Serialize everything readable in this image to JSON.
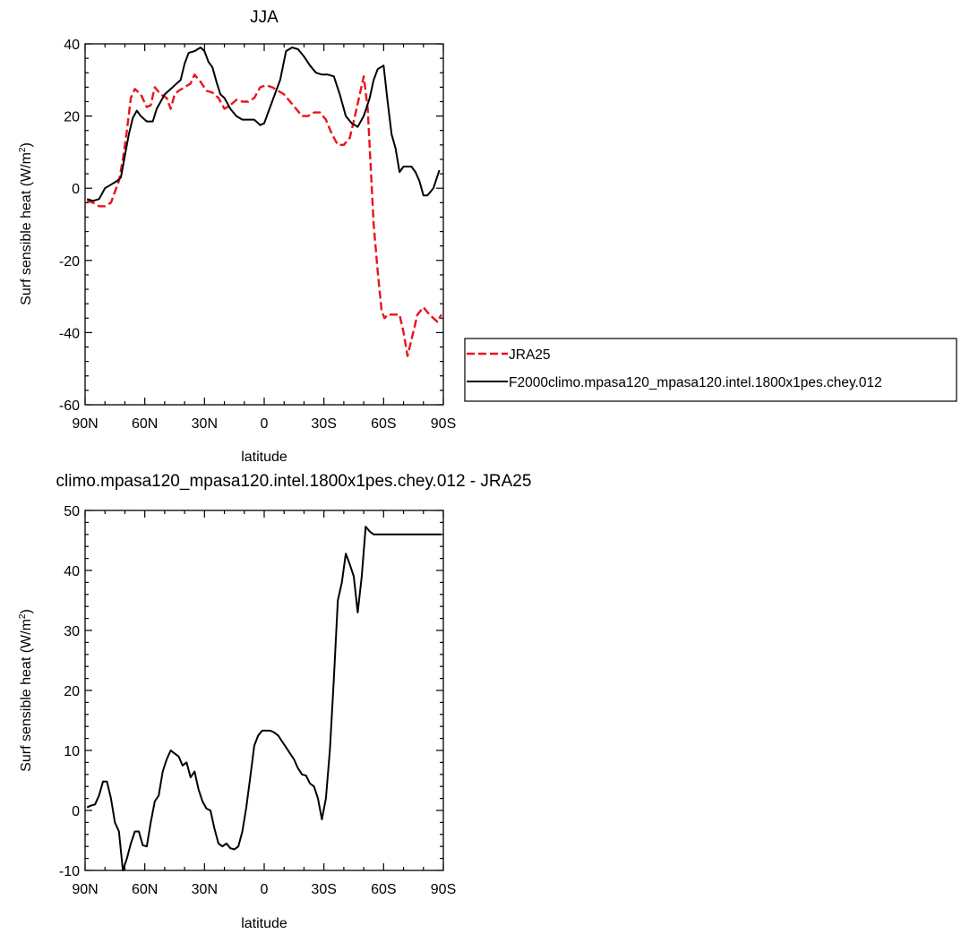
{
  "chart_data": [
    {
      "type": "line",
      "title": "JJA",
      "xlabel": "latitude",
      "ylabel": "Surf sensible heat (W/m",
      "ylabel_sup": "2",
      "ylabel_close": ")",
      "xlim": [
        -90,
        90
      ],
      "ylim": [
        -60,
        40
      ],
      "x_ticks": [
        -90,
        -60,
        -30,
        0,
        30,
        60,
        90
      ],
      "x_tick_labels": [
        "90N",
        "60N",
        "30N",
        "0",
        "30S",
        "60S",
        "90S"
      ],
      "y_ticks": [
        -60,
        -40,
        -20,
        0,
        20,
        40
      ],
      "y_tick_labels": [
        "-60",
        "-40",
        "-20",
        "0",
        "20",
        "40"
      ],
      "grid": false,
      "legend_position": "right",
      "series": [
        {
          "name": "JRA25",
          "color": "#e8141b",
          "dash": "dashed",
          "x": [
            -89,
            -86,
            -83,
            -80,
            -77,
            -75,
            -73,
            -71,
            -69,
            -67,
            -65,
            -62,
            -59,
            -57,
            -55,
            -52,
            -49,
            -47,
            -45,
            -43,
            -40,
            -37,
            -35,
            -32,
            -29,
            -26,
            -23,
            -20,
            -17,
            -14,
            -11,
            -8,
            -5,
            -2,
            1,
            4,
            7,
            10,
            13,
            16,
            19,
            22,
            25,
            28,
            31,
            34,
            37,
            40,
            43,
            46,
            48,
            50,
            52,
            55,
            57,
            59,
            60.5,
            62,
            64,
            66,
            68,
            70,
            72,
            74,
            77,
            80,
            83,
            85,
            87,
            89
          ],
          "y": [
            -3.5,
            -4,
            -5,
            -5,
            -4,
            -1,
            2,
            8,
            16,
            25,
            27.5,
            26,
            22.5,
            23,
            28,
            26,
            25,
            22,
            26,
            27,
            28,
            29,
            31.5,
            29.5,
            27,
            26.5,
            25,
            22,
            23,
            24.5,
            24,
            24,
            25,
            28,
            28.5,
            28,
            27,
            26,
            24,
            22,
            20,
            20,
            21,
            21,
            19,
            15,
            12,
            12,
            14,
            21,
            26,
            31,
            22,
            -10,
            -23,
            -34,
            -36,
            -35,
            -35,
            -35,
            -35,
            -40,
            -46.5,
            -42,
            -35,
            -33,
            -35,
            -36,
            -37,
            -35
          ]
        },
        {
          "name": "F2000climo.mpasa120_mpasa120.intel.1800x1pes.chey.012",
          "color": "#000000",
          "dash": "solid",
          "x": [
            -89,
            -86,
            -83,
            -80,
            -77,
            -74,
            -72,
            -70,
            -68,
            -66,
            -64,
            -62,
            -59,
            -56,
            -54,
            -52,
            -50,
            -48,
            -46,
            -44,
            -42,
            -40,
            -38,
            -35,
            -32,
            -30,
            -28,
            -26,
            -24,
            -22,
            -20,
            -17,
            -14,
            -11,
            -8,
            -5,
            -2,
            0,
            2,
            5,
            8,
            11,
            14,
            17,
            20,
            23,
            26,
            29,
            32,
            35,
            38,
            41,
            44,
            47,
            50,
            53,
            55,
            57,
            60,
            62,
            64,
            66,
            68,
            70,
            72,
            74,
            76,
            78,
            80,
            82,
            85,
            88
          ],
          "y": [
            -3,
            -3.5,
            -3,
            0,
            1,
            2,
            3,
            9,
            15,
            19.5,
            21.5,
            20,
            18.5,
            18.5,
            22,
            24,
            26,
            27,
            28,
            29,
            30,
            34.5,
            37.5,
            38,
            39,
            38,
            35,
            33.5,
            29.5,
            26,
            25,
            22,
            20,
            19,
            19,
            19,
            17.5,
            18,
            21,
            25.5,
            30,
            38,
            39,
            38.5,
            36.5,
            34,
            32,
            31.5,
            31.5,
            31,
            26,
            20,
            18,
            17,
            20,
            25,
            30,
            33,
            34,
            24,
            15,
            11,
            4.5,
            6,
            6,
            6,
            4.5,
            2,
            -2,
            -2,
            0,
            5
          ]
        }
      ]
    },
    {
      "type": "line",
      "title": "climo.mpasa120_mpasa120.intel.1800x1pes.chey.012 - JRA25",
      "xlabel": "latitude",
      "ylabel": "Surf sensible heat (W/m",
      "ylabel_sup": "2",
      "ylabel_close": ")",
      "xlim": [
        -90,
        90
      ],
      "ylim": [
        -10,
        50
      ],
      "x_ticks": [
        -90,
        -60,
        -30,
        0,
        30,
        60,
        90
      ],
      "x_tick_labels": [
        "90N",
        "60N",
        "30N",
        "0",
        "30S",
        "60S",
        "90S"
      ],
      "y_ticks": [
        -10,
        0,
        10,
        20,
        30,
        40,
        50
      ],
      "y_tick_labels": [
        "-10",
        "0",
        "10",
        "20",
        "30",
        "40",
        "50"
      ],
      "grid": false,
      "series": [
        {
          "color": "#000000",
          "dash": "solid",
          "x": [
            -89,
            -87,
            -85,
            -83,
            -81,
            -79,
            -77,
            -75,
            -73,
            -71,
            -69,
            -67,
            -65,
            -63,
            -61,
            -59,
            -57,
            -55,
            -53,
            -51,
            -49,
            -47,
            -45,
            -43,
            -41,
            -39,
            -37,
            -35,
            -33,
            -31,
            -29,
            -27,
            -25,
            -23,
            -21,
            -19,
            -17,
            -15,
            -13,
            -11,
            -9,
            -7,
            -5,
            -3,
            -1,
            1,
            3,
            5,
            7,
            9,
            11,
            13,
            15,
            17,
            19,
            21,
            23,
            25,
            27,
            29,
            31,
            33,
            35,
            37,
            39,
            41,
            43,
            45,
            47,
            49,
            51,
            53,
            55,
            57,
            59,
            61,
            63,
            65,
            67,
            69,
            71,
            73,
            75,
            77,
            79,
            81,
            83,
            85,
            87,
            89
          ],
          "y": [
            0.5,
            0.8,
            1,
            2.5,
            4.8,
            4.8,
            2,
            -2,
            -3.5,
            -10,
            -8,
            -5.5,
            -3.5,
            -3.5,
            -5.8,
            -6,
            -2,
            1.5,
            2.5,
            6.5,
            8.5,
            10,
            9.5,
            9,
            7.5,
            8,
            5.5,
            6.5,
            3.5,
            1.5,
            0.3,
            0,
            -3,
            -5.5,
            -6,
            -5.5,
            -6.3,
            -6.5,
            -6,
            -3.5,
            0.5,
            5.5,
            10.8,
            12.5,
            13.3,
            13.3,
            13.3,
            13,
            12.5,
            11.5,
            10.5,
            9.5,
            8.5,
            7,
            6,
            5.8,
            4.5,
            4,
            2,
            -1.5,
            2,
            10,
            22,
            35,
            38,
            42.8,
            41,
            39,
            33,
            39,
            47.3,
            46.5,
            46,
            46,
            46,
            46,
            46,
            46,
            46,
            46,
            46,
            46,
            46,
            46,
            46,
            46,
            46,
            46,
            46,
            46
          ]
        }
      ]
    }
  ]
}
